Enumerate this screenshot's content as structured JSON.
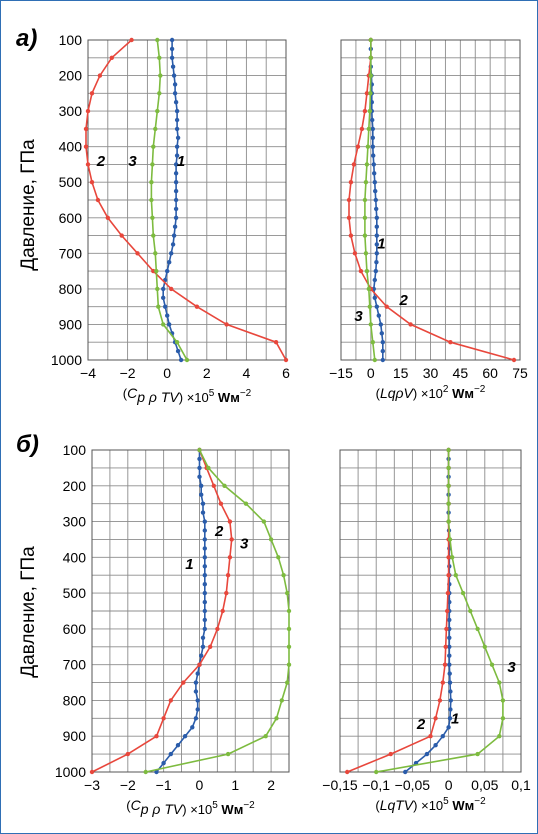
{
  "ylabel": "Давление, ГПа",
  "colors": {
    "line1": "#2a5caa",
    "line2": "#e8473c",
    "line3": "#7dbb3f",
    "grid": "#8c8c8c",
    "frame": "#2f6fb5"
  },
  "chart_data": [
    {
      "panel_label": "а)",
      "type": "line",
      "x_tick_labels": [
        "−4",
        "−2",
        "0",
        "2",
        "4",
        "6"
      ],
      "x_ticks": [
        -4,
        -2,
        0,
        2,
        4,
        6
      ],
      "xlim": [
        -4,
        6
      ],
      "y_tick_labels": [
        "100",
        "200",
        "300",
        "400",
        "500",
        "600",
        "700",
        "800",
        "900",
        "1000"
      ],
      "ylim": [
        100,
        1000
      ],
      "y_inverted": true,
      "xlabel": {
        "paren": "(",
        "var1": "C",
        "sub": "p",
        "var2": " ρ TV",
        "close": ")",
        "times": " ×10",
        "exp": "5",
        "unit": " Wм",
        "uexp": "−2"
      },
      "grid": true,
      "series": [
        {
          "name": "1",
          "color": "#2a5caa",
          "y": [
            100,
            125,
            150,
            175,
            200,
            225,
            250,
            275,
            300,
            325,
            350,
            375,
            400,
            425,
            450,
            475,
            500,
            525,
            550,
            575,
            600,
            625,
            650,
            675,
            700,
            725,
            750,
            775,
            800,
            825,
            850,
            875,
            900,
            925,
            950,
            975,
            1000
          ],
          "x": [
            0.25,
            0.25,
            0.25,
            0.3,
            0.35,
            0.4,
            0.4,
            0.45,
            0.5,
            0.5,
            0.5,
            0.55,
            0.5,
            0.5,
            0.45,
            0.45,
            0.45,
            0.45,
            0.45,
            0.45,
            0.45,
            0.4,
            0.35,
            0.3,
            0.2,
            0.1,
            0,
            -0.1,
            -0.2,
            -0.2,
            -0.1,
            0,
            0.1,
            0.25,
            0.4,
            0.55,
            0.7
          ]
        },
        {
          "name": "2",
          "color": "#e8473c",
          "y": [
            100,
            150,
            200,
            250,
            300,
            350,
            400,
            450,
            500,
            550,
            600,
            650,
            700,
            750,
            800,
            850,
            900,
            950,
            1000
          ],
          "x": [
            -1.8,
            -2.8,
            -3.4,
            -3.8,
            -4.0,
            -4.1,
            -4.1,
            -4.0,
            -3.8,
            -3.5,
            -3.0,
            -2.3,
            -1.5,
            -0.7,
            0.2,
            1.5,
            3.0,
            5.5,
            6.0
          ]
        },
        {
          "name": "3",
          "color": "#7dbb3f",
          "y": [
            100,
            150,
            200,
            250,
            300,
            350,
            400,
            450,
            500,
            550,
            600,
            650,
            700,
            750,
            800,
            850,
            900,
            950,
            1000
          ],
          "x": [
            -0.5,
            -0.4,
            -0.35,
            -0.4,
            -0.5,
            -0.6,
            -0.7,
            -0.75,
            -0.8,
            -0.8,
            -0.75,
            -0.7,
            -0.6,
            -0.55,
            -0.5,
            -0.45,
            -0.2,
            0.5,
            1.0
          ]
        }
      ],
      "curve_labels": [
        {
          "text": "1",
          "x": 0.7,
          "y": 455
        },
        {
          "text": "2",
          "x": -3.35,
          "y": 455
        },
        {
          "text": "3",
          "x": -1.75,
          "y": 455
        }
      ]
    },
    {
      "panel_label": "",
      "type": "line",
      "x_tick_labels": [
        "−15",
        "0",
        "15",
        "30",
        "45",
        "60",
        "75"
      ],
      "x_ticks": [
        -15,
        0,
        15,
        30,
        45,
        60,
        75
      ],
      "xlim": [
        -15,
        75
      ],
      "y_tick_labels": [],
      "ylim": [
        100,
        1000
      ],
      "y_inverted": true,
      "xlabel": {
        "paren": "(",
        "var1": "Lq",
        "sub": "",
        "var2": "ρV",
        "close": ")",
        "times": " ×10",
        "exp": "2",
        "unit": " Wм",
        "uexp": "−2"
      },
      "grid": true,
      "series": [
        {
          "name": "1",
          "color": "#2a5caa",
          "y": [
            100,
            125,
            150,
            175,
            200,
            225,
            250,
            275,
            300,
            325,
            350,
            375,
            400,
            425,
            450,
            475,
            500,
            525,
            550,
            575,
            600,
            625,
            650,
            675,
            700,
            725,
            750,
            775,
            800,
            825,
            850,
            875,
            900,
            925,
            950,
            975,
            1000
          ],
          "x": [
            0,
            0,
            0,
            0,
            0.3,
            0.5,
            0.5,
            0.5,
            0.5,
            0.7,
            1,
            1,
            1,
            1.2,
            1.5,
            1.7,
            2,
            2.2,
            2.5,
            2.7,
            3,
            3,
            3,
            3,
            3,
            2.8,
            2.5,
            2,
            1.5,
            2,
            3,
            4,
            5,
            5.5,
            6,
            6,
            6
          ]
        },
        {
          "name": "2",
          "color": "#e8473c",
          "y": [
            100,
            150,
            200,
            250,
            300,
            350,
            400,
            450,
            500,
            550,
            600,
            650,
            700,
            750,
            800,
            850,
            900,
            950,
            1000
          ],
          "x": [
            0,
            0,
            -1,
            -2,
            -3,
            -4.5,
            -6.5,
            -8.5,
            -10,
            -11,
            -11,
            -10,
            -8,
            -5,
            0,
            8,
            20,
            40,
            72
          ]
        },
        {
          "name": "3",
          "color": "#7dbb3f",
          "y": [
            100,
            150,
            200,
            250,
            300,
            350,
            400,
            450,
            500,
            550,
            600,
            650,
            700,
            750,
            800,
            850,
            900,
            950,
            1000
          ],
          "x": [
            0,
            0,
            0,
            -0.2,
            -0.5,
            -1,
            -1.5,
            -2,
            -2.5,
            -3,
            -3,
            -3,
            -2.5,
            -2,
            -1,
            -0.5,
            0,
            1,
            2
          ]
        }
      ],
      "curve_labels": [
        {
          "text": "1",
          "x": 5.3,
          "y": 687
        },
        {
          "text": "2",
          "x": 16.5,
          "y": 845
        },
        {
          "text": "3",
          "x": -6.2,
          "y": 890
        }
      ]
    },
    {
      "panel_label": "б)",
      "type": "line",
      "x_tick_labels": [
        "−3",
        "−2",
        "−1",
        "0",
        "1",
        "2"
      ],
      "x_ticks": [
        -3,
        -2,
        -1,
        0,
        1,
        2
      ],
      "xlim": [
        -3,
        2.5
      ],
      "y_tick_labels": [
        "100",
        "200",
        "300",
        "400",
        "500",
        "600",
        "700",
        "800",
        "900",
        "1000"
      ],
      "ylim": [
        100,
        1000
      ],
      "y_inverted": true,
      "xlabel": {
        "paren": "(",
        "var1": "C",
        "sub": "p",
        "var2": " ρ TV",
        "close": ")",
        "times": " ×10",
        "exp": "5",
        "unit": " Wм",
        "uexp": "−2"
      },
      "grid": true,
      "series": [
        {
          "name": "1",
          "color": "#2a5caa",
          "y": [
            100,
            125,
            150,
            175,
            200,
            225,
            250,
            275,
            300,
            325,
            350,
            375,
            400,
            425,
            450,
            475,
            500,
            525,
            550,
            575,
            600,
            625,
            650,
            675,
            700,
            725,
            750,
            775,
            800,
            825,
            850,
            875,
            900,
            925,
            950,
            975,
            1000
          ],
          "x": [
            0,
            0,
            0,
            0,
            0.05,
            0.05,
            0.1,
            0.1,
            0.15,
            0.15,
            0.15,
            0.15,
            0.15,
            0.15,
            0.15,
            0.15,
            0.15,
            0.15,
            0.15,
            0.15,
            0.15,
            0.1,
            0.1,
            0.05,
            0,
            -0.05,
            -0.1,
            -0.1,
            -0.05,
            -0.05,
            -0.1,
            -0.2,
            -0.4,
            -0.6,
            -0.8,
            -1.0,
            -1.2
          ]
        },
        {
          "name": "2",
          "color": "#e8473c",
          "y": [
            100,
            150,
            200,
            250,
            300,
            350,
            400,
            450,
            500,
            550,
            600,
            650,
            700,
            750,
            800,
            850,
            900,
            950,
            1000
          ],
          "x": [
            0,
            0.2,
            0.4,
            0.6,
            0.85,
            0.9,
            0.85,
            0.8,
            0.75,
            0.65,
            0.5,
            0.3,
            0,
            -0.45,
            -0.8,
            -1.0,
            -1.2,
            -2.0,
            -3.0
          ]
        },
        {
          "name": "3",
          "color": "#7dbb3f",
          "y": [
            100,
            150,
            200,
            250,
            300,
            350,
            400,
            450,
            500,
            550,
            600,
            650,
            700,
            750,
            800,
            850,
            900,
            950,
            1000
          ],
          "x": [
            0,
            0.25,
            0.7,
            1.3,
            1.8,
            2.0,
            2.2,
            2.35,
            2.45,
            2.5,
            2.5,
            2.5,
            2.5,
            2.45,
            2.3,
            2.15,
            1.85,
            0.8,
            -1.5
          ]
        }
      ],
      "curve_labels": [
        {
          "text": "1",
          "x": -0.28,
          "y": 432
        },
        {
          "text": "2",
          "x": 0.55,
          "y": 340
        },
        {
          "text": "3",
          "x": 1.25,
          "y": 375
        }
      ]
    },
    {
      "panel_label": "",
      "type": "line",
      "x_tick_labels": [
        "−0,15",
        "−0,1",
        "−0,05",
        "0",
        "0,05",
        "0,1"
      ],
      "x_ticks": [
        -0.15,
        -0.1,
        -0.05,
        0,
        0.05,
        0.1
      ],
      "xlim": [
        -0.15,
        0.1
      ],
      "y_tick_labels": [],
      "ylim": [
        100,
        1000
      ],
      "y_inverted": true,
      "xlabel": {
        "paren": "(",
        "var1": "LqTV",
        "sub": "",
        "var2": "",
        "close": ")",
        "times": " ×10",
        "exp": "5",
        "unit": " Wм",
        "uexp": "−2"
      },
      "grid": true,
      "series": [
        {
          "name": "1",
          "color": "#2a5caa",
          "y": [
            100,
            125,
            150,
            175,
            200,
            225,
            250,
            275,
            300,
            325,
            350,
            375,
            400,
            425,
            450,
            475,
            500,
            525,
            550,
            575,
            600,
            625,
            650,
            675,
            700,
            725,
            750,
            775,
            800,
            825,
            850,
            875,
            900,
            925,
            950,
            975,
            1000
          ],
          "x": [
            0,
            0,
            0,
            0,
            0,
            0,
            0,
            0,
            0,
            0.0005,
            0.001,
            0.001,
            0.001,
            0.001,
            0.001,
            0.001,
            0.001,
            0.001,
            0.001,
            0.001,
            0.001,
            0.001,
            0.001,
            0.001,
            0.001,
            0.0015,
            0.002,
            0.0025,
            0.003,
            0.0025,
            0.002,
            0,
            -0.008,
            -0.018,
            -0.03,
            -0.045,
            -0.06
          ]
        },
        {
          "name": "2",
          "color": "#e8473c",
          "y": [
            100,
            150,
            200,
            250,
            300,
            350,
            400,
            450,
            500,
            550,
            600,
            650,
            700,
            750,
            800,
            850,
            900,
            950,
            1000
          ],
          "x": [
            0,
            0,
            0,
            0,
            0,
            0,
            0,
            0,
            -0.001,
            -0.002,
            -0.003,
            -0.004,
            -0.005,
            -0.008,
            -0.012,
            -0.018,
            -0.025,
            -0.08,
            -0.14
          ]
        },
        {
          "name": "3",
          "color": "#7dbb3f",
          "y": [
            100,
            150,
            200,
            250,
            300,
            350,
            400,
            450,
            500,
            550,
            600,
            650,
            700,
            750,
            800,
            850,
            900,
            950,
            1000
          ],
          "x": [
            0,
            0,
            0,
            0,
            0,
            0.002,
            0.005,
            0.01,
            0.02,
            0.03,
            0.04,
            0.05,
            0.06,
            0.07,
            0.075,
            0.075,
            0.07,
            0.04,
            -0.1
          ]
        }
      ],
      "curve_labels": [
        {
          "text": "1",
          "x": 0.009,
          "y": 865
        },
        {
          "text": "2",
          "x": -0.038,
          "y": 880
        },
        {
          "text": "3",
          "x": 0.087,
          "y": 720
        }
      ]
    }
  ]
}
